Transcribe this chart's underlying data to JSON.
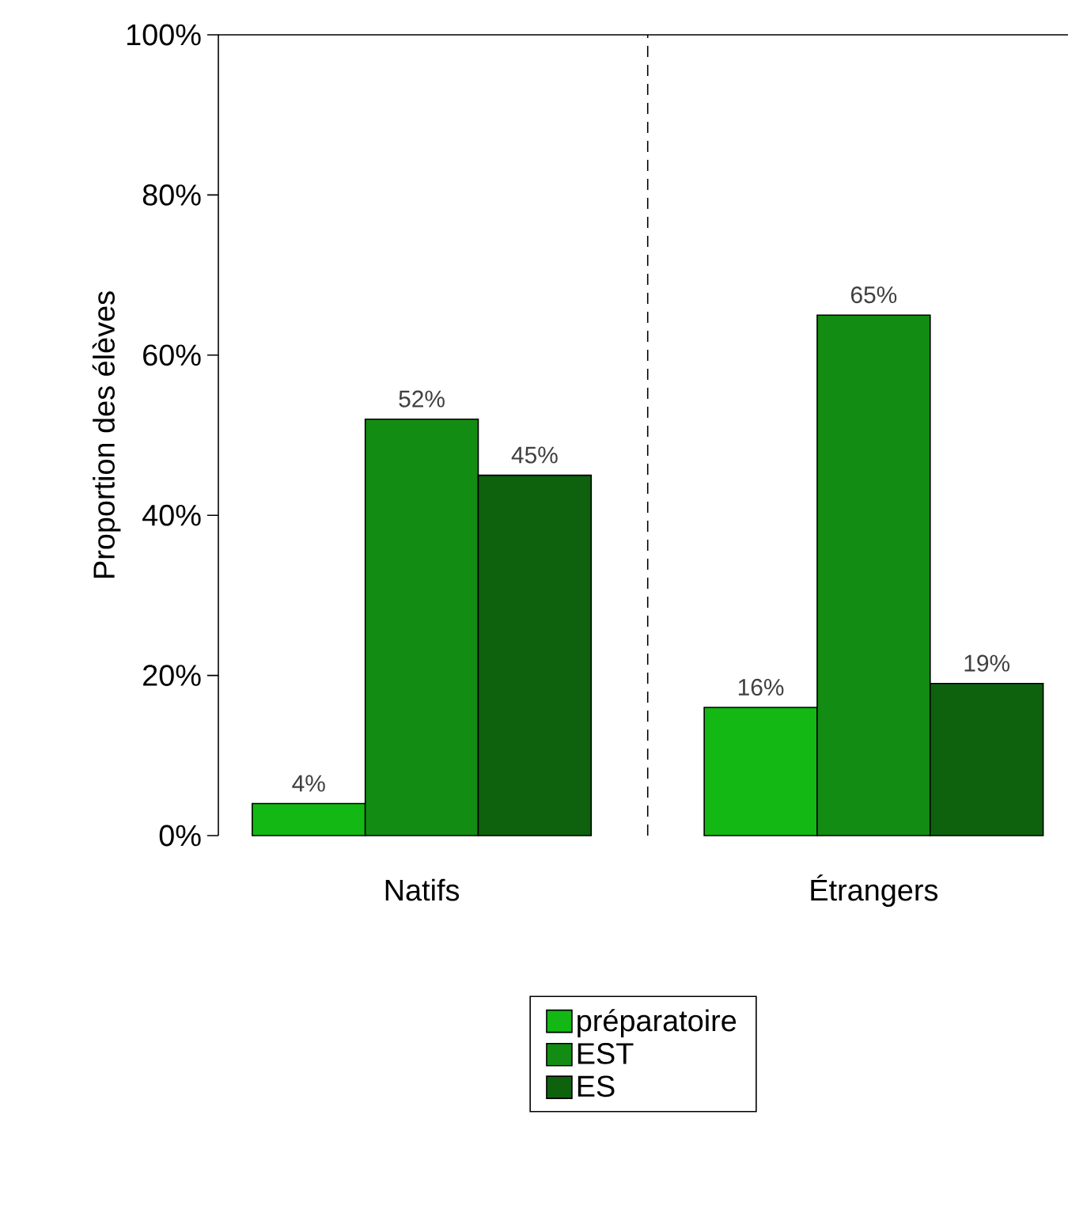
{
  "chart_data": {
    "type": "bar",
    "ylabel": "Proportion des élèves",
    "categories": [
      "Natifs",
      "Étrangers"
    ],
    "series": [
      {
        "name": "préparatoire",
        "color": "#14b814",
        "values": [
          4,
          16
        ],
        "value_labels": [
          "4%",
          "16%"
        ]
      },
      {
        "name": "EST",
        "color": "#128c12",
        "values": [
          52,
          65
        ],
        "value_labels": [
          "52%",
          "65%"
        ]
      },
      {
        "name": "ES",
        "color": "#0e620e",
        "values": [
          45,
          19
        ],
        "value_labels": [
          "45%",
          "19%"
        ]
      }
    ],
    "ylim": [
      0,
      100
    ],
    "yticks": [
      {
        "value": 0,
        "label": "0%"
      },
      {
        "value": 20,
        "label": "20%"
      },
      {
        "value": 40,
        "label": "40%"
      },
      {
        "value": 60,
        "label": "60%"
      },
      {
        "value": 80,
        "label": "80%"
      },
      {
        "value": 100,
        "label": "100%"
      }
    ],
    "legend": "bottom",
    "grid": false
  }
}
